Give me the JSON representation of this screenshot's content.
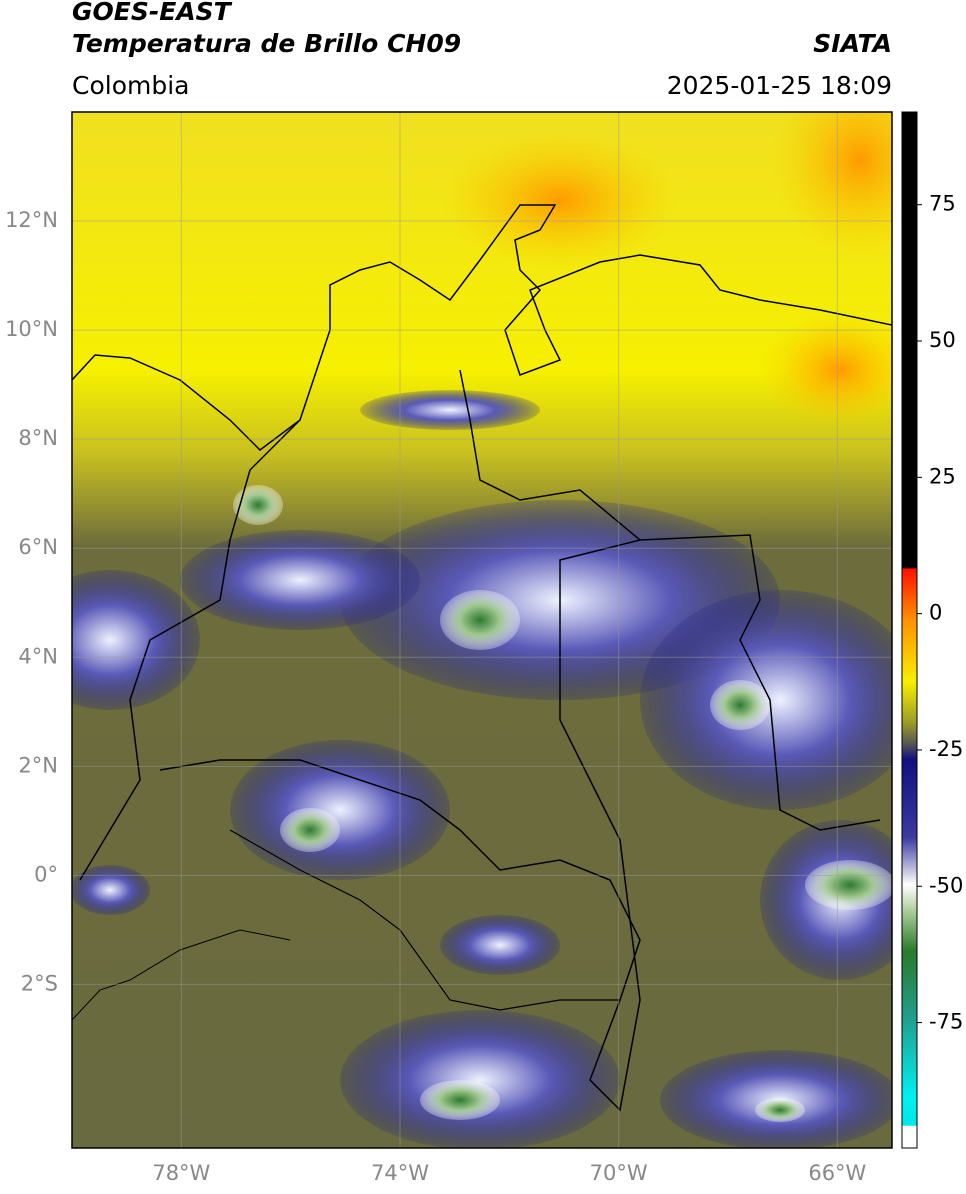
{
  "header": {
    "title": "GOES-EAST",
    "subtitle": "Temperatura de Brillo CH09",
    "source": "SIATA",
    "region": "Colombia",
    "datetime": "2025-01-25 18:09"
  },
  "chart_data": {
    "type": "map",
    "xlim": [
      -80,
      -65
    ],
    "ylim": [
      -5,
      14
    ],
    "xticks": [
      {
        "value": -78,
        "label": "78°W"
      },
      {
        "value": -74,
        "label": "74°W"
      },
      {
        "value": -70,
        "label": "70°W"
      },
      {
        "value": -66,
        "label": "66°W"
      }
    ],
    "yticks": [
      {
        "value": 12,
        "label": "12°N"
      },
      {
        "value": 10,
        "label": "10°N"
      },
      {
        "value": 8,
        "label": "8°N"
      },
      {
        "value": 6,
        "label": "6°N"
      },
      {
        "value": 4,
        "label": "4°N"
      },
      {
        "value": 2,
        "label": "2°N"
      },
      {
        "value": 0,
        "label": "0°"
      },
      {
        "value": -2,
        "label": "2°S"
      }
    ],
    "grid": true,
    "colorbar": {
      "lim": [
        -98,
        92
      ],
      "ticks": [
        75,
        50,
        25,
        0,
        -25,
        -50,
        -75
      ]
    }
  }
}
